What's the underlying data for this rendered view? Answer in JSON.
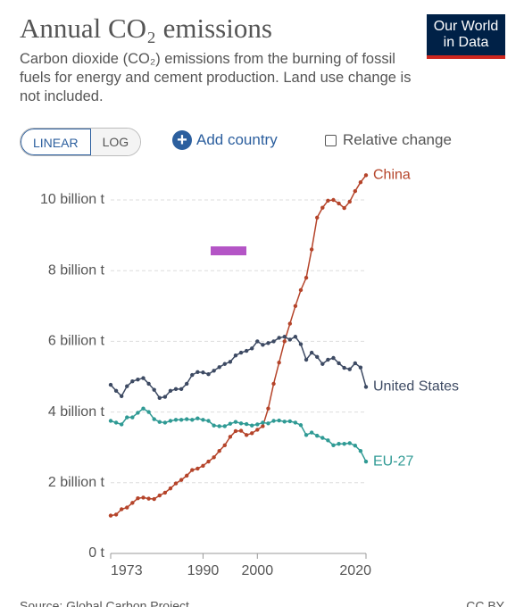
{
  "header": {
    "title": "Annual CO₂ emissions",
    "subtitle": "Carbon dioxide (CO₂) emissions from the burning of fossil fuels for energy and cement production. Land use change is not included.",
    "logo": "Our World in Data"
  },
  "controls": {
    "linear": "LINEAR",
    "log": "LOG",
    "add_country": "Add country",
    "relative_change": "Relative change"
  },
  "chart_data": {
    "type": "line",
    "x": [
      1973,
      1974,
      1975,
      1976,
      1977,
      1978,
      1979,
      1980,
      1981,
      1982,
      1983,
      1984,
      1985,
      1986,
      1987,
      1988,
      1989,
      1990,
      1991,
      1992,
      1993,
      1994,
      1995,
      1996,
      1997,
      1998,
      1999,
      2000,
      2001,
      2002,
      2003,
      2004,
      2005,
      2006,
      2007,
      2008,
      2009,
      2010,
      2011,
      2012,
      2013,
      2014,
      2015,
      2016,
      2017,
      2018,
      2019,
      2020
    ],
    "series": [
      {
        "name": "China",
        "color": "#b5442a",
        "values": [
          1.07,
          1.1,
          1.25,
          1.3,
          1.43,
          1.56,
          1.58,
          1.55,
          1.54,
          1.64,
          1.72,
          1.84,
          1.98,
          2.08,
          2.2,
          2.36,
          2.4,
          2.48,
          2.6,
          2.72,
          2.9,
          3.06,
          3.3,
          3.46,
          3.47,
          3.35,
          3.4,
          3.5,
          3.6,
          4.1,
          4.8,
          5.4,
          6.0,
          6.5,
          7.0,
          7.45,
          7.8,
          8.6,
          9.5,
          9.78,
          9.98,
          10.0,
          9.9,
          9.77,
          9.95,
          10.25,
          10.5,
          10.7
        ]
      },
      {
        "name": "United States",
        "color": "#3d4a63",
        "values": [
          4.77,
          4.6,
          4.45,
          4.73,
          4.87,
          4.92,
          4.96,
          4.8,
          4.63,
          4.4,
          4.43,
          4.6,
          4.65,
          4.65,
          4.8,
          5.05,
          5.13,
          5.12,
          5.07,
          5.17,
          5.27,
          5.36,
          5.42,
          5.6,
          5.68,
          5.73,
          5.8,
          6.0,
          5.9,
          5.95,
          6.0,
          6.1,
          6.13,
          6.05,
          6.13,
          5.92,
          5.48,
          5.68,
          5.56,
          5.36,
          5.48,
          5.53,
          5.38,
          5.25,
          5.21,
          5.38,
          5.26,
          4.71
        ]
      },
      {
        "name": "EU-27",
        "color": "#2f9a94",
        "values": [
          3.75,
          3.7,
          3.65,
          3.85,
          3.85,
          3.98,
          4.1,
          4.0,
          3.8,
          3.72,
          3.7,
          3.75,
          3.78,
          3.78,
          3.8,
          3.78,
          3.82,
          3.78,
          3.75,
          3.62,
          3.6,
          3.6,
          3.67,
          3.72,
          3.68,
          3.66,
          3.62,
          3.65,
          3.7,
          3.68,
          3.75,
          3.76,
          3.73,
          3.74,
          3.7,
          3.63,
          3.35,
          3.42,
          3.33,
          3.27,
          3.2,
          3.06,
          3.1,
          3.1,
          3.12,
          3.05,
          2.9,
          2.6
        ]
      }
    ],
    "xlim": [
      1973,
      2020
    ],
    "xticks": [
      1973,
      1990,
      2000,
      2020
    ],
    "ylim": [
      0,
      10
    ],
    "yticks": [
      {
        "value": 0,
        "label": "0 t"
      },
      {
        "value": 2,
        "label": "2 billion t"
      },
      {
        "value": 4,
        "label": "4 billion t"
      },
      {
        "value": 6,
        "label": "6 billion t"
      },
      {
        "value": 8,
        "label": "8 billion t"
      },
      {
        "value": 10,
        "label": "10 billion t"
      }
    ],
    "grid": true
  },
  "footer": {
    "source": "Source: Global Carbon Project",
    "license": "CC BY"
  }
}
